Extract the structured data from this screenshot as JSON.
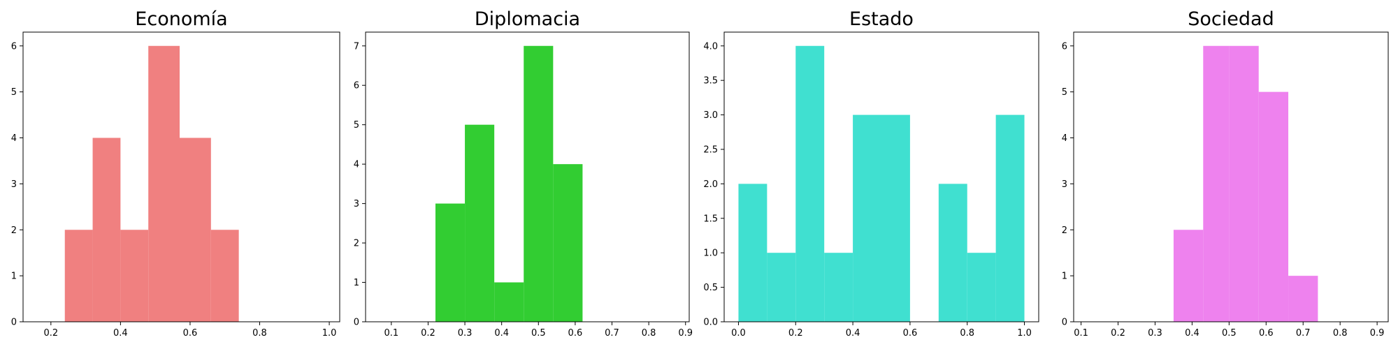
{
  "chart_data": [
    {
      "type": "bar",
      "title": "Economía",
      "color": "#F08080",
      "bins": [
        {
          "start": 0.24,
          "end": 0.32,
          "count": 2
        },
        {
          "start": 0.32,
          "end": 0.4,
          "count": 4
        },
        {
          "start": 0.4,
          "end": 0.48,
          "count": 2
        },
        {
          "start": 0.48,
          "end": 0.57,
          "count": 6
        },
        {
          "start": 0.57,
          "end": 0.66,
          "count": 4
        },
        {
          "start": 0.66,
          "end": 0.74,
          "count": 2
        }
      ],
      "xlim": [
        0.12,
        1.03
      ],
      "ylim": [
        0,
        6.3
      ],
      "xticks": [
        0.2,
        0.4,
        0.6,
        0.8,
        1.0
      ],
      "xtick_labels": [
        "0.2",
        "0.4",
        "0.6",
        "0.8",
        "1.0"
      ],
      "yticks": [
        0,
        1,
        2,
        3,
        4,
        5,
        6
      ],
      "ytick_labels": [
        "0",
        "1",
        "2",
        "3",
        "4",
        "5",
        "6"
      ]
    },
    {
      "type": "bar",
      "title": "Diplomacia",
      "color": "#32CD32",
      "bins": [
        {
          "start": 0.22,
          "end": 0.3,
          "count": 3
        },
        {
          "start": 0.3,
          "end": 0.38,
          "count": 5
        },
        {
          "start": 0.38,
          "end": 0.46,
          "count": 1
        },
        {
          "start": 0.46,
          "end": 0.54,
          "count": 7
        },
        {
          "start": 0.54,
          "end": 0.62,
          "count": 4
        }
      ],
      "xlim": [
        0.03,
        0.91
      ],
      "ylim": [
        0,
        7.35
      ],
      "xticks": [
        0.1,
        0.2,
        0.3,
        0.4,
        0.5,
        0.6,
        0.7,
        0.8,
        0.9
      ],
      "xtick_labels": [
        "0.1",
        "0.2",
        "0.3",
        "0.4",
        "0.5",
        "0.6",
        "0.7",
        "0.8",
        "0.9"
      ],
      "yticks": [
        0,
        1,
        2,
        3,
        4,
        5,
        6,
        7
      ],
      "ytick_labels": [
        "0",
        "1",
        "2",
        "3",
        "4",
        "5",
        "6",
        "7"
      ]
    },
    {
      "type": "bar",
      "title": "Estado",
      "color": "#40E0D0",
      "bins": [
        {
          "start": 0.0,
          "end": 0.1,
          "count": 2
        },
        {
          "start": 0.1,
          "end": 0.2,
          "count": 1
        },
        {
          "start": 0.2,
          "end": 0.3,
          "count": 4
        },
        {
          "start": 0.3,
          "end": 0.4,
          "count": 1
        },
        {
          "start": 0.4,
          "end": 0.5,
          "count": 3
        },
        {
          "start": 0.5,
          "end": 0.6,
          "count": 3
        },
        {
          "start": 0.7,
          "end": 0.8,
          "count": 2
        },
        {
          "start": 0.8,
          "end": 0.9,
          "count": 1
        },
        {
          "start": 0.9,
          "end": 1.0,
          "count": 3
        }
      ],
      "xlim": [
        -0.05,
        1.05
      ],
      "ylim": [
        0,
        4.2
      ],
      "xticks": [
        0.0,
        0.2,
        0.4,
        0.6,
        0.8,
        1.0
      ],
      "xtick_labels": [
        "0.0",
        "0.2",
        "0.4",
        "0.6",
        "0.8",
        "1.0"
      ],
      "yticks": [
        0,
        0.5,
        1.0,
        1.5,
        2.0,
        2.5,
        3.0,
        3.5,
        4.0
      ],
      "ytick_labels": [
        "0.0",
        "0.5",
        "1.0",
        "1.5",
        "2.0",
        "2.5",
        "3.0",
        "3.5",
        "4.0"
      ]
    },
    {
      "type": "bar",
      "title": "Sociedad",
      "color": "#EE82EE",
      "bins": [
        {
          "start": 0.35,
          "end": 0.43,
          "count": 2
        },
        {
          "start": 0.43,
          "end": 0.5,
          "count": 6
        },
        {
          "start": 0.5,
          "end": 0.58,
          "count": 6
        },
        {
          "start": 0.58,
          "end": 0.66,
          "count": 5
        },
        {
          "start": 0.66,
          "end": 0.74,
          "count": 1
        }
      ],
      "xlim": [
        0.08,
        0.93
      ],
      "ylim": [
        0,
        6.3
      ],
      "xticks": [
        0.1,
        0.2,
        0.3,
        0.4,
        0.5,
        0.6,
        0.7,
        0.8,
        0.9
      ],
      "xtick_labels": [
        "0.1",
        "0.2",
        "0.3",
        "0.4",
        "0.5",
        "0.6",
        "0.7",
        "0.8",
        "0.9"
      ],
      "yticks": [
        0,
        1,
        2,
        3,
        4,
        5,
        6
      ],
      "ytick_labels": [
        "0",
        "1",
        "2",
        "3",
        "4",
        "5",
        "6"
      ]
    }
  ]
}
